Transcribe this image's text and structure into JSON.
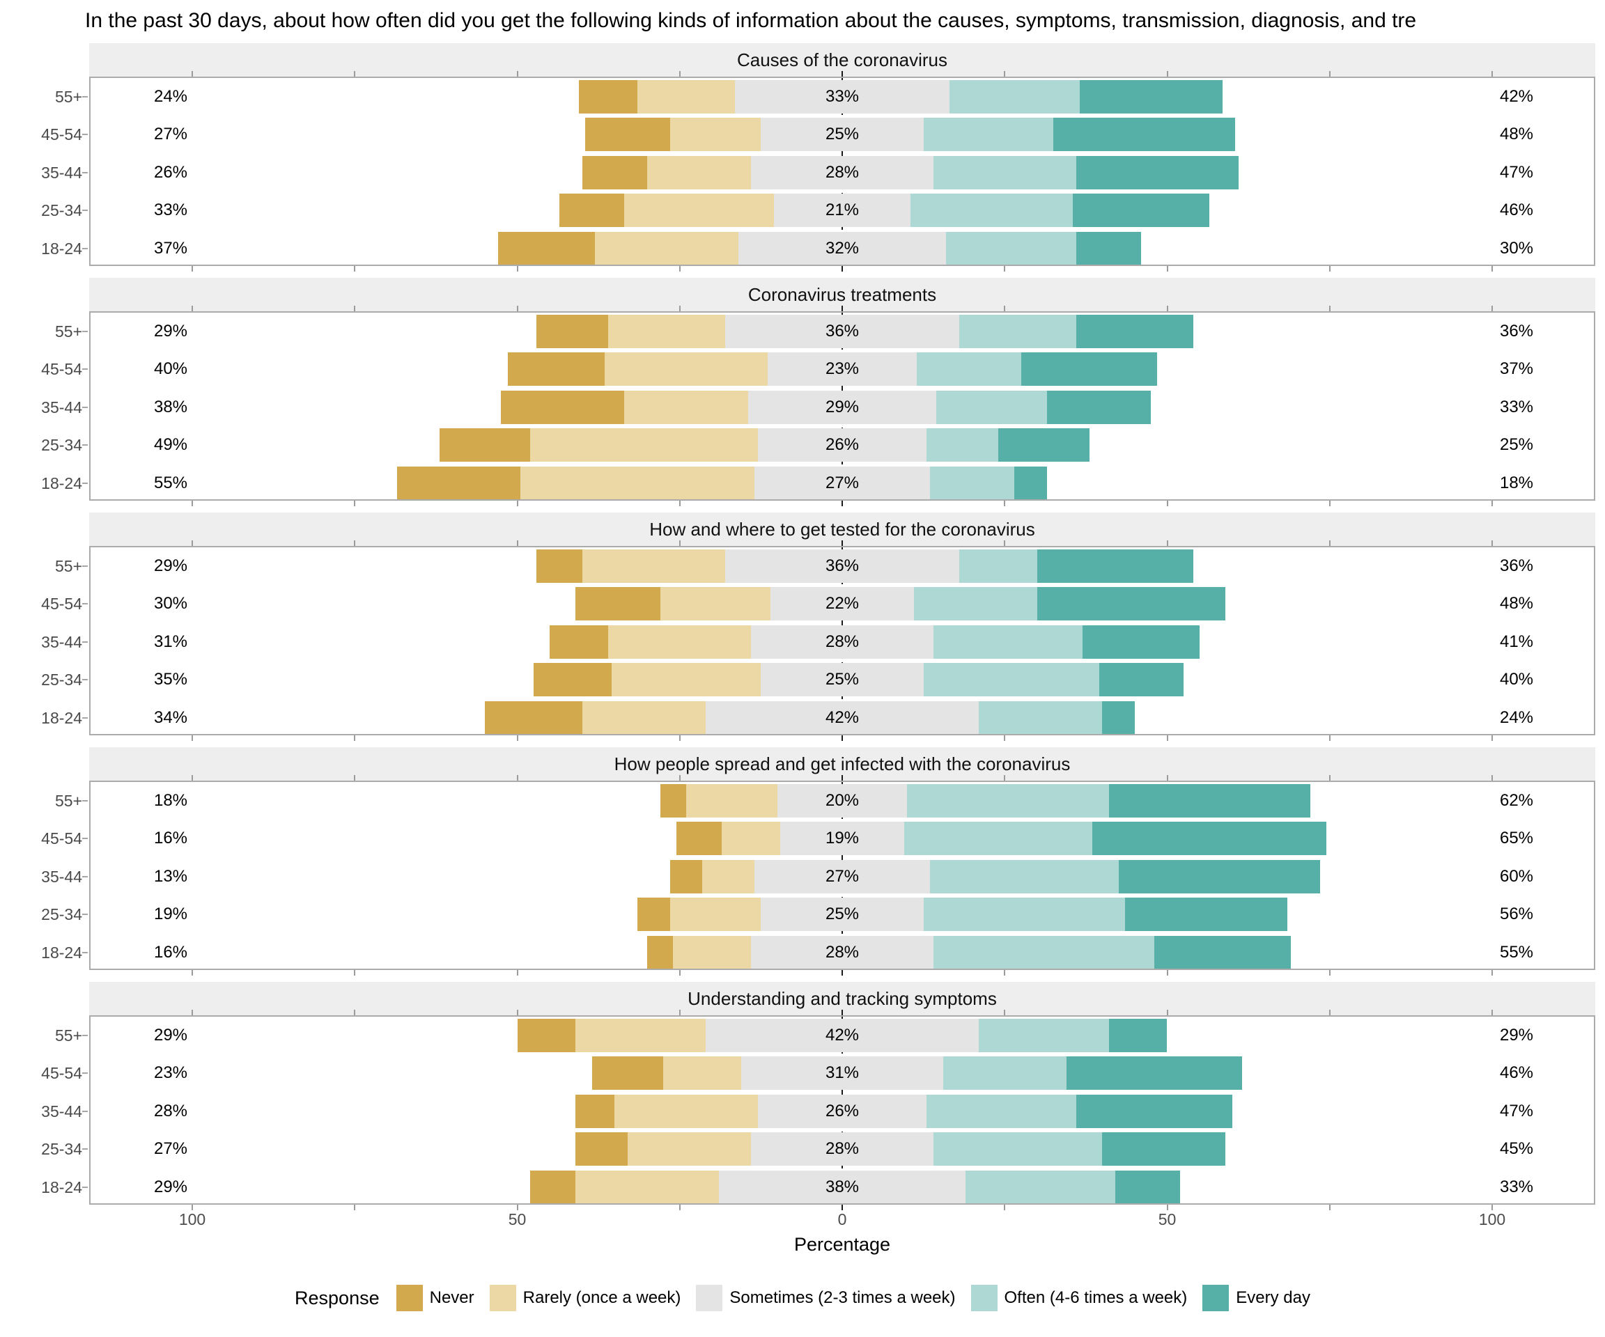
{
  "title": "In the past 30 days, about how often did you get the following kinds of information about the causes, symptoms, transmission, diagnosis, and tre",
  "axis": {
    "xlabel": "Percentage",
    "tick_labels": [
      "100",
      "50",
      "0",
      "50",
      "100"
    ],
    "tick_values": [
      -100,
      -50,
      0,
      50,
      100
    ]
  },
  "legend": {
    "title": "Response",
    "items": [
      {
        "label": "Never",
        "color_key": "never"
      },
      {
        "label": "Rarely (once a week)",
        "color_key": "rarely"
      },
      {
        "label": "Sometimes (2-3 times a week)",
        "color_key": "sometimes"
      },
      {
        "label": "Often (4-6 times a week)",
        "color_key": "often"
      },
      {
        "label": "Every day",
        "color_key": "every_day"
      }
    ]
  },
  "colors": {
    "never": "#d3a94d",
    "rarely": "#ecd8a4",
    "sometimes": "#e4e4e4",
    "often": "#aed8d3",
    "every_day": "#57b0a8",
    "panel_strip": "#eeeeee",
    "panel_border": "#ababab",
    "axis_text": "#4d4d4d",
    "zero_line": "#1a1a1a"
  },
  "chart_data": {
    "type": "bar",
    "subtype": "diverging_stacked_likert",
    "orientation": "horizontal",
    "xlabel": "Percentage",
    "xlim": [
      -115,
      115
    ],
    "ticks_every": 25,
    "labeled_ticks": [
      -100,
      -50,
      0,
      50,
      100
    ],
    "center_category": "Sometimes (2-3 times a week)",
    "series_order": [
      "Never",
      "Rarely (once a week)",
      "Sometimes (2-3 times a week)",
      "Often (4-6 times a week)",
      "Every day"
    ],
    "categories": [
      "55+",
      "45-54",
      "35-44",
      "25-34",
      "18-24"
    ],
    "panels": [
      {
        "title": "Causes of the coronavirus",
        "rows": [
          {
            "group": "55+",
            "never": 9,
            "rarely": 15,
            "sometimes": 33,
            "often": 20,
            "every_day": 22,
            "left_label": "24%",
            "mid_label": "33%",
            "right_label": "42%"
          },
          {
            "group": "45-54",
            "never": 13,
            "rarely": 14,
            "sometimes": 25,
            "often": 20,
            "every_day": 28,
            "left_label": "27%",
            "mid_label": "25%",
            "right_label": "48%"
          },
          {
            "group": "35-44",
            "never": 10,
            "rarely": 16,
            "sometimes": 28,
            "often": 22,
            "every_day": 25,
            "left_label": "26%",
            "mid_label": "28%",
            "right_label": "47%"
          },
          {
            "group": "25-34",
            "never": 10,
            "rarely": 23,
            "sometimes": 21,
            "often": 25,
            "every_day": 21,
            "left_label": "33%",
            "mid_label": "21%",
            "right_label": "46%"
          },
          {
            "group": "18-24",
            "never": 15,
            "rarely": 22,
            "sometimes": 32,
            "often": 20,
            "every_day": 10,
            "left_label": "37%",
            "mid_label": "32%",
            "right_label": "30%"
          }
        ]
      },
      {
        "title": "Coronavirus treatments",
        "rows": [
          {
            "group": "55+",
            "never": 11,
            "rarely": 18,
            "sometimes": 36,
            "often": 18,
            "every_day": 18,
            "left_label": "29%",
            "mid_label": "36%",
            "right_label": "36%"
          },
          {
            "group": "45-54",
            "never": 15,
            "rarely": 25,
            "sometimes": 23,
            "often": 16,
            "every_day": 21,
            "left_label": "40%",
            "mid_label": "23%",
            "right_label": "37%"
          },
          {
            "group": "35-44",
            "never": 19,
            "rarely": 19,
            "sometimes": 29,
            "often": 17,
            "every_day": 16,
            "left_label": "38%",
            "mid_label": "29%",
            "right_label": "33%"
          },
          {
            "group": "25-34",
            "never": 14,
            "rarely": 35,
            "sometimes": 26,
            "often": 11,
            "every_day": 14,
            "left_label": "49%",
            "mid_label": "26%",
            "right_label": "25%"
          },
          {
            "group": "18-24",
            "never": 19,
            "rarely": 36,
            "sometimes": 27,
            "often": 13,
            "every_day": 5,
            "left_label": "55%",
            "mid_label": "27%",
            "right_label": "18%"
          }
        ]
      },
      {
        "title": "How and where to get tested for the coronavirus",
        "rows": [
          {
            "group": "55+",
            "never": 7,
            "rarely": 22,
            "sometimes": 36,
            "often": 12,
            "every_day": 24,
            "left_label": "29%",
            "mid_label": "36%",
            "right_label": "36%"
          },
          {
            "group": "45-54",
            "never": 13,
            "rarely": 17,
            "sometimes": 22,
            "often": 19,
            "every_day": 29,
            "left_label": "30%",
            "mid_label": "22%",
            "right_label": "48%"
          },
          {
            "group": "35-44",
            "never": 9,
            "rarely": 22,
            "sometimes": 28,
            "often": 23,
            "every_day": 18,
            "left_label": "31%",
            "mid_label": "28%",
            "right_label": "41%"
          },
          {
            "group": "25-34",
            "never": 12,
            "rarely": 23,
            "sometimes": 25,
            "often": 27,
            "every_day": 13,
            "left_label": "35%",
            "mid_label": "25%",
            "right_label": "40%"
          },
          {
            "group": "18-24",
            "never": 15,
            "rarely": 19,
            "sometimes": 42,
            "often": 19,
            "every_day": 5,
            "left_label": "34%",
            "mid_label": "42%",
            "right_label": "24%"
          }
        ]
      },
      {
        "title": "How people spread and get infected with the coronavirus",
        "rows": [
          {
            "group": "55+",
            "never": 4,
            "rarely": 14,
            "sometimes": 20,
            "often": 31,
            "every_day": 31,
            "left_label": "18%",
            "mid_label": "20%",
            "right_label": "62%"
          },
          {
            "group": "45-54",
            "never": 7,
            "rarely": 9,
            "sometimes": 19,
            "often": 29,
            "every_day": 36,
            "left_label": "16%",
            "mid_label": "19%",
            "right_label": "65%"
          },
          {
            "group": "35-44",
            "never": 5,
            "rarely": 8,
            "sometimes": 27,
            "often": 29,
            "every_day": 31,
            "left_label": "13%",
            "mid_label": "27%",
            "right_label": "60%"
          },
          {
            "group": "25-34",
            "never": 5,
            "rarely": 14,
            "sometimes": 25,
            "often": 31,
            "every_day": 25,
            "left_label": "19%",
            "mid_label": "25%",
            "right_label": "56%"
          },
          {
            "group": "18-24",
            "never": 4,
            "rarely": 12,
            "sometimes": 28,
            "often": 34,
            "every_day": 21,
            "left_label": "16%",
            "mid_label": "28%",
            "right_label": "55%"
          }
        ]
      },
      {
        "title": "Understanding and tracking symptoms",
        "rows": [
          {
            "group": "55+",
            "never": 9,
            "rarely": 20,
            "sometimes": 42,
            "often": 20,
            "every_day": 9,
            "left_label": "29%",
            "mid_label": "42%",
            "right_label": "29%"
          },
          {
            "group": "45-54",
            "never": 11,
            "rarely": 12,
            "sometimes": 31,
            "often": 19,
            "every_day": 27,
            "left_label": "23%",
            "mid_label": "31%",
            "right_label": "46%"
          },
          {
            "group": "35-44",
            "never": 6,
            "rarely": 22,
            "sometimes": 26,
            "often": 23,
            "every_day": 24,
            "left_label": "28%",
            "mid_label": "26%",
            "right_label": "47%"
          },
          {
            "group": "25-34",
            "never": 8,
            "rarely": 19,
            "sometimes": 28,
            "often": 26,
            "every_day": 19,
            "left_label": "27%",
            "mid_label": "28%",
            "right_label": "45%"
          },
          {
            "group": "18-24",
            "never": 7,
            "rarely": 22,
            "sometimes": 38,
            "often": 23,
            "every_day": 10,
            "left_label": "29%",
            "mid_label": "38%",
            "right_label": "33%"
          }
        ]
      }
    ]
  }
}
